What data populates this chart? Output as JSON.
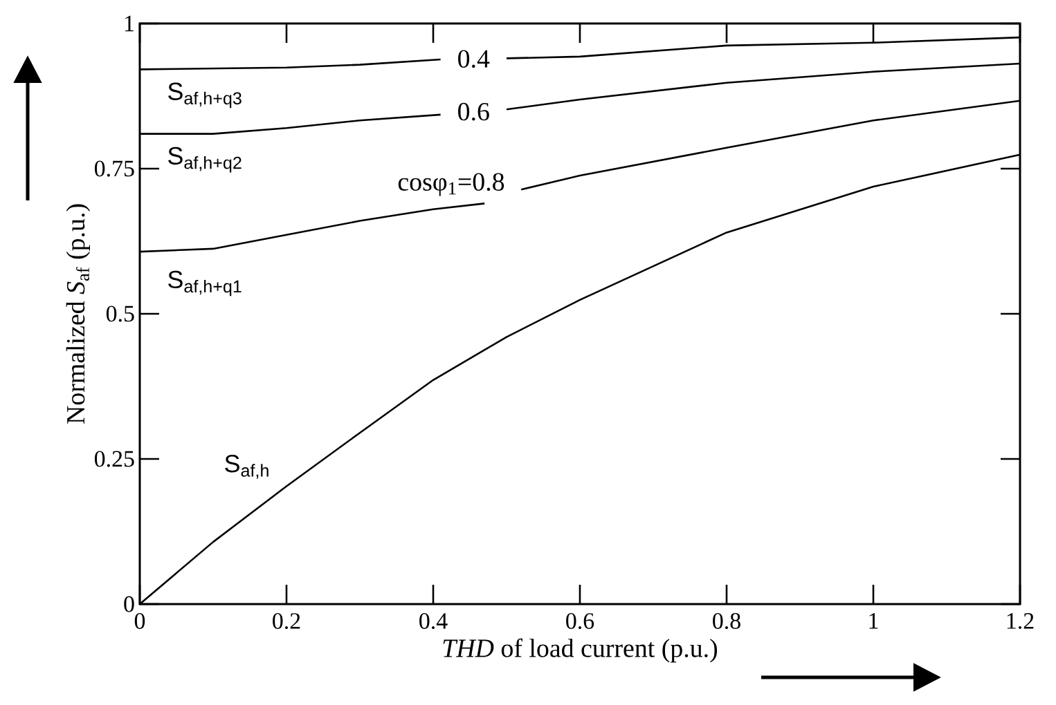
{
  "chart_data": {
    "type": "line",
    "xlabel": "*THD* of load current (p.u.)",
    "ylabel": "Normalized *S*$_{af}$ (p.u.)",
    "xlim": [
      0,
      1.2
    ],
    "ylim": [
      0,
      1
    ],
    "xticks": [
      0,
      0.2,
      0.4,
      0.6,
      0.8,
      1,
      1.2
    ],
    "yticks": [
      0,
      0.25,
      0.5,
      0.75,
      1
    ],
    "grid": false,
    "marker": "none",
    "line_style": "solid",
    "series": [
      {
        "name": "S$_{af,h+q3}$",
        "color": "#000000",
        "x": [
          0,
          0.2,
          0.3,
          0.41,
          0.45,
          0.5,
          0.6,
          0.8,
          1,
          1.2
        ],
        "values": [
          0.921,
          0.924,
          0.929,
          0.938,
          null,
          0.94,
          0.943,
          0.962,
          0.967,
          0.976
        ]
      },
      {
        "name": "S$_{af,h+q2}$",
        "color": "#000000",
        "x": [
          0,
          0.1,
          0.2,
          0.3,
          0.41,
          0.45,
          0.5,
          0.6,
          0.8,
          1,
          1.2
        ],
        "values": [
          0.81,
          0.81,
          0.82,
          0.833,
          0.843,
          null,
          0.852,
          0.869,
          0.898,
          0.917,
          0.931
        ]
      },
      {
        "name": "S$_{af,h+q1}$",
        "color": "#000000",
        "x": [
          0,
          0.1,
          0.2,
          0.3,
          0.4,
          0.47,
          0.5,
          0.52,
          0.6,
          0.8,
          1,
          1.2
        ],
        "values": [
          0.607,
          0.612,
          0.636,
          0.66,
          0.68,
          0.69,
          null,
          0.714,
          0.738,
          0.786,
          0.833,
          0.867
        ]
      },
      {
        "name": "S$_{af,h}$",
        "color": "#000000",
        "x": [
          0,
          0.1,
          0.2,
          0.3,
          0.4,
          0.5,
          0.6,
          0.8,
          1,
          1.2
        ],
        "values": [
          0,
          0.107,
          0.203,
          0.295,
          0.386,
          0.46,
          0.524,
          0.64,
          0.719,
          0.774
        ]
      }
    ],
    "annotations": [
      "0.4",
      "0.6",
      "cosφ$_{1}$=0.8"
    ]
  }
}
